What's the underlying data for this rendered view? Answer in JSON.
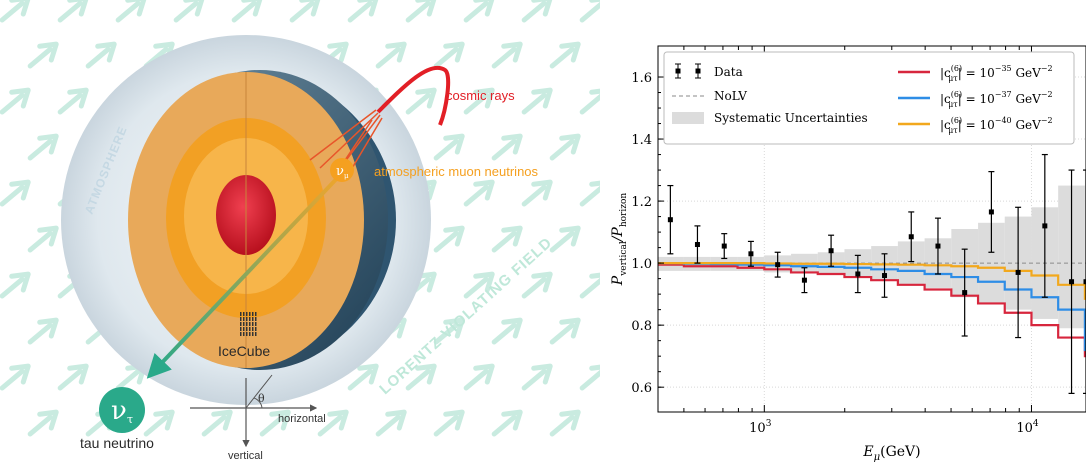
{
  "figure": {
    "left": {
      "labels": {
        "cosmic_rays": "cosmic rays",
        "atm_muon_neutrinos": "atmospheric muon neutrinos",
        "atmosphere": "ATMOSPHERE",
        "lorentz_field": "LORENTZ VIOLATING FIELD",
        "icecube": "IceCube",
        "tau_neutrino": "tau neutrino",
        "horizontal": "horizontal",
        "vertical": "vertical",
        "theta": "θ",
        "nu_mu_symbol": "ν",
        "nu_mu_sub": "μ",
        "nu_tau_symbol": "ν",
        "nu_tau_sub": "τ"
      },
      "colors": {
        "cosmic": "#e21f26",
        "muon_neutrino": "#f5a020",
        "tau_neutrino": "#2aa98a",
        "field_arrows": "#c9ebe0",
        "atmosphere_text": "#c5d8e3",
        "lorentz_text": "#bfe8d9"
      }
    },
    "right": {
      "legend": {
        "data": "Data",
        "nolv": "NoLV",
        "systematic": "Systematic Uncertainties",
        "lv_35": "|c^(6)_μτ| = 10^−35 GeV^−2",
        "lv_37": "|c^(6)_μτ| = 10^−37 GeV^−2",
        "lv_40": "|c^(6)_μτ| = 10^−40 GeV^−2"
      },
      "chart_data": {
        "type": "line",
        "xlabel": "E_μ(GeV)",
        "ylabel": "P_vertical / P_horizon",
        "xscale": "log",
        "xlim": [
          400,
          16000
        ],
        "ylim": [
          0.52,
          1.7
        ],
        "yticks": [
          0.6,
          0.8,
          1.0,
          1.2,
          1.4,
          1.6
        ],
        "ytick_labels": [
          "0.6",
          "0.8",
          "1.0",
          "1.2",
          "1.4",
          "1.6"
        ],
        "xticks": [
          1000,
          10000
        ],
        "xtick_labels": [
          "10^3",
          "10^4"
        ],
        "grid": true,
        "legend_position": "top",
        "bin_edges": [
          400,
          500,
          630,
          794,
          1000,
          1259,
          1585,
          1995,
          2512,
          3162,
          3981,
          5012,
          6310,
          7943,
          10000,
          12589,
          15849,
          16000
        ],
        "data_points": {
          "x": [
            445,
            562,
            708,
            891,
            1122,
            1413,
            1778,
            2239,
            2818,
            3548,
            4467,
            5623,
            7079,
            8913,
            11220,
            14125,
            16000
          ],
          "y": [
            1.14,
            1.06,
            1.055,
            1.03,
            0.995,
            0.945,
            1.04,
            0.965,
            0.96,
            1.085,
            1.055,
            0.905,
            1.165,
            0.97,
            1.12,
            0.94,
            0.94
          ],
          "err": [
            0.11,
            0.06,
            0.04,
            0.04,
            0.04,
            0.04,
            0.05,
            0.06,
            0.07,
            0.08,
            0.09,
            0.14,
            0.13,
            0.21,
            0.23,
            0.36,
            0.36
          ]
        },
        "systematic_band": {
          "lo": [
            0.975,
            0.975,
            0.975,
            0.975,
            0.97,
            0.97,
            0.965,
            0.955,
            0.945,
            0.93,
            0.92,
            0.89,
            0.87,
            0.85,
            0.82,
            0.79,
            0.77
          ],
          "hi": [
            1.02,
            1.02,
            1.02,
            1.02,
            1.025,
            1.03,
            1.035,
            1.045,
            1.055,
            1.07,
            1.08,
            1.11,
            1.13,
            1.15,
            1.18,
            1.25,
            1.3
          ],
          "color": "#dcdcdc"
        },
        "nolv": {
          "y": 1.0,
          "color": "#8a8a8a"
        },
        "series": [
          {
            "name": "|c^(6)_μτ| = 10^−35 GeV^−2",
            "color": "#d7263d",
            "values": [
              0.995,
              0.99,
              0.99,
              0.985,
              0.98,
              0.97,
              0.965,
              0.955,
              0.945,
              0.93,
              0.915,
              0.895,
              0.87,
              0.84,
              0.8,
              0.76,
              0.7
            ]
          },
          {
            "name": "|c^(6)_μτ| = 10^−37 GeV^−2",
            "color": "#2e8de6",
            "values": [
              1.0,
              0.998,
              0.997,
              0.995,
              0.993,
              0.99,
              0.988,
              0.985,
              0.98,
              0.975,
              0.965,
              0.955,
              0.94,
              0.915,
              0.89,
              0.85,
              0.72
            ]
          },
          {
            "name": "|c^(6)_μτ| = 10^−40 GeV^−2",
            "color": "#f2a81d",
            "values": [
              1.0,
              1.0,
              1.0,
              1.0,
              0.999,
              0.998,
              0.998,
              0.997,
              0.996,
              0.995,
              0.993,
              0.99,
              0.985,
              0.975,
              0.96,
              0.93,
              0.885
            ]
          }
        ]
      }
    }
  }
}
